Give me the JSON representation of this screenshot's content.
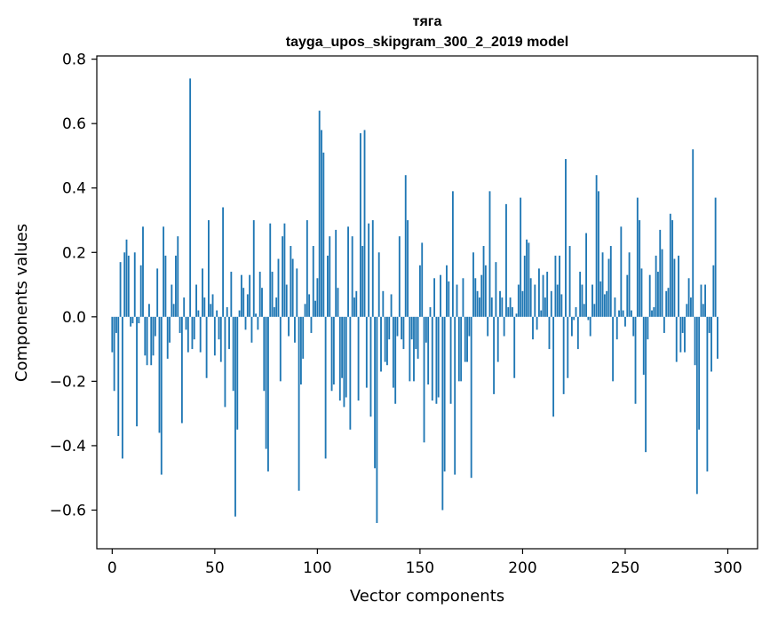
{
  "chart_data": {
    "type": "bar",
    "title": "тяга",
    "subtitle": "tayga_upos_skipgram_300_2_2019 model",
    "xlabel": "Vector components",
    "ylabel": "Components values",
    "xlim": [
      -7.5,
      314.5
    ],
    "ylim": [
      -0.72,
      0.81
    ],
    "xticks": [
      0,
      50,
      100,
      150,
      200,
      250,
      300
    ],
    "xtick_labels": [
      "0",
      "50",
      "100",
      "150",
      "200",
      "250",
      "300"
    ],
    "yticks": [
      -0.6,
      -0.4,
      -0.2,
      0.0,
      0.2,
      0.4,
      0.6,
      0.8
    ],
    "ytick_labels": [
      "−0.6",
      "−0.4",
      "−0.2",
      "0.0",
      "0.2",
      "0.4",
      "0.6",
      "0.8"
    ],
    "bar_color": "#1f77b4",
    "values": [
      -0.11,
      -0.23,
      -0.05,
      -0.37,
      0.17,
      -0.44,
      0.2,
      0.24,
      0.19,
      -0.03,
      -0.02,
      0.2,
      -0.34,
      -0.02,
      0.16,
      0.28,
      -0.12,
      -0.15,
      0.04,
      -0.15,
      -0.12,
      -0.06,
      0.15,
      -0.36,
      -0.49,
      0.28,
      0.19,
      -0.13,
      -0.08,
      0.1,
      0.04,
      0.19,
      0.25,
      -0.05,
      -0.33,
      0.06,
      -0.04,
      -0.11,
      0.74,
      -0.1,
      -0.07,
      0.1,
      0.02,
      -0.11,
      0.15,
      0.06,
      -0.19,
      0.3,
      0.04,
      0.07,
      -0.12,
      0.02,
      -0.07,
      -0.14,
      0.34,
      -0.28,
      0.03,
      -0.1,
      0.14,
      -0.23,
      -0.62,
      -0.35,
      0.02,
      0.13,
      0.09,
      -0.04,
      0.07,
      0.13,
      -0.08,
      0.3,
      0.01,
      -0.04,
      0.14,
      0.09,
      -0.23,
      -0.41,
      -0.48,
      0.29,
      0.14,
      0.03,
      0.06,
      0.18,
      -0.2,
      0.25,
      0.29,
      0.1,
      -0.06,
      0.22,
      0.18,
      -0.08,
      0.15,
      -0.54,
      -0.21,
      -0.13,
      0.04,
      0.3,
      0.07,
      -0.05,
      0.22,
      0.05,
      0.12,
      0.64,
      0.58,
      0.51,
      -0.44,
      0.19,
      0.25,
      -0.23,
      -0.21,
      0.27,
      0.09,
      -0.26,
      -0.19,
      -0.28,
      -0.25,
      0.28,
      -0.35,
      0.25,
      0.06,
      0.08,
      -0.26,
      0.57,
      0.22,
      0.58,
      -0.22,
      0.29,
      -0.31,
      0.3,
      -0.47,
      -0.64,
      0.2,
      -0.17,
      0.08,
      -0.14,
      -0.15,
      -0.07,
      0.07,
      -0.22,
      -0.27,
      -0.06,
      0.25,
      -0.07,
      -0.1,
      0.44,
      0.3,
      -0.2,
      -0.07,
      -0.2,
      -0.1,
      -0.13,
      0.16,
      0.23,
      -0.39,
      -0.08,
      -0.21,
      0.03,
      -0.26,
      0.12,
      -0.27,
      -0.25,
      0.13,
      -0.6,
      -0.48,
      0.16,
      0.11,
      -0.27,
      0.39,
      -0.49,
      0.1,
      -0.2,
      -0.2,
      0.12,
      -0.14,
      -0.14,
      -0.06,
      -0.5,
      0.2,
      0.12,
      0.08,
      0.06,
      0.13,
      0.22,
      0.16,
      -0.06,
      0.39,
      0.06,
      -0.24,
      0.17,
      -0.14,
      0.08,
      0.06,
      -0.06,
      0.35,
      0.03,
      0.06,
      0.03,
      -0.19,
      0.01,
      0.1,
      0.37,
      0.08,
      0.19,
      0.24,
      0.23,
      0.12,
      -0.07,
      0.1,
      -0.04,
      0.15,
      0.02,
      0.13,
      0.06,
      0.14,
      -0.1,
      0.08,
      -0.31,
      0.19,
      0.1,
      0.19,
      0.07,
      -0.24,
      0.49,
      -0.19,
      0.22,
      -0.06,
      -0.01,
      0.03,
      -0.1,
      0.14,
      0.1,
      0.04,
      0.26,
      -0.01,
      -0.06,
      0.1,
      0.04,
      0.44,
      0.39,
      0.11,
      0.2,
      0.07,
      0.08,
      0.18,
      0.22,
      -0.2,
      0.06,
      -0.07,
      0.02,
      0.28,
      0.02,
      -0.03,
      0.13,
      0.2,
      0.02,
      -0.06,
      -0.27,
      0.37,
      0.3,
      0.15,
      -0.18,
      -0.42,
      -0.07,
      0.13,
      0.02,
      0.03,
      0.19,
      0.14,
      0.27,
      0.21,
      -0.05,
      0.08,
      0.09,
      0.32,
      0.3,
      0.18,
      -0.14,
      0.19,
      -0.11,
      -0.05,
      -0.11,
      0.04,
      0.12,
      0.06,
      0.52,
      -0.15,
      -0.55,
      -0.35,
      0.1,
      0.04,
      0.1,
      -0.48,
      -0.05,
      -0.17,
      0.16,
      0.37,
      -0.13
    ]
  }
}
